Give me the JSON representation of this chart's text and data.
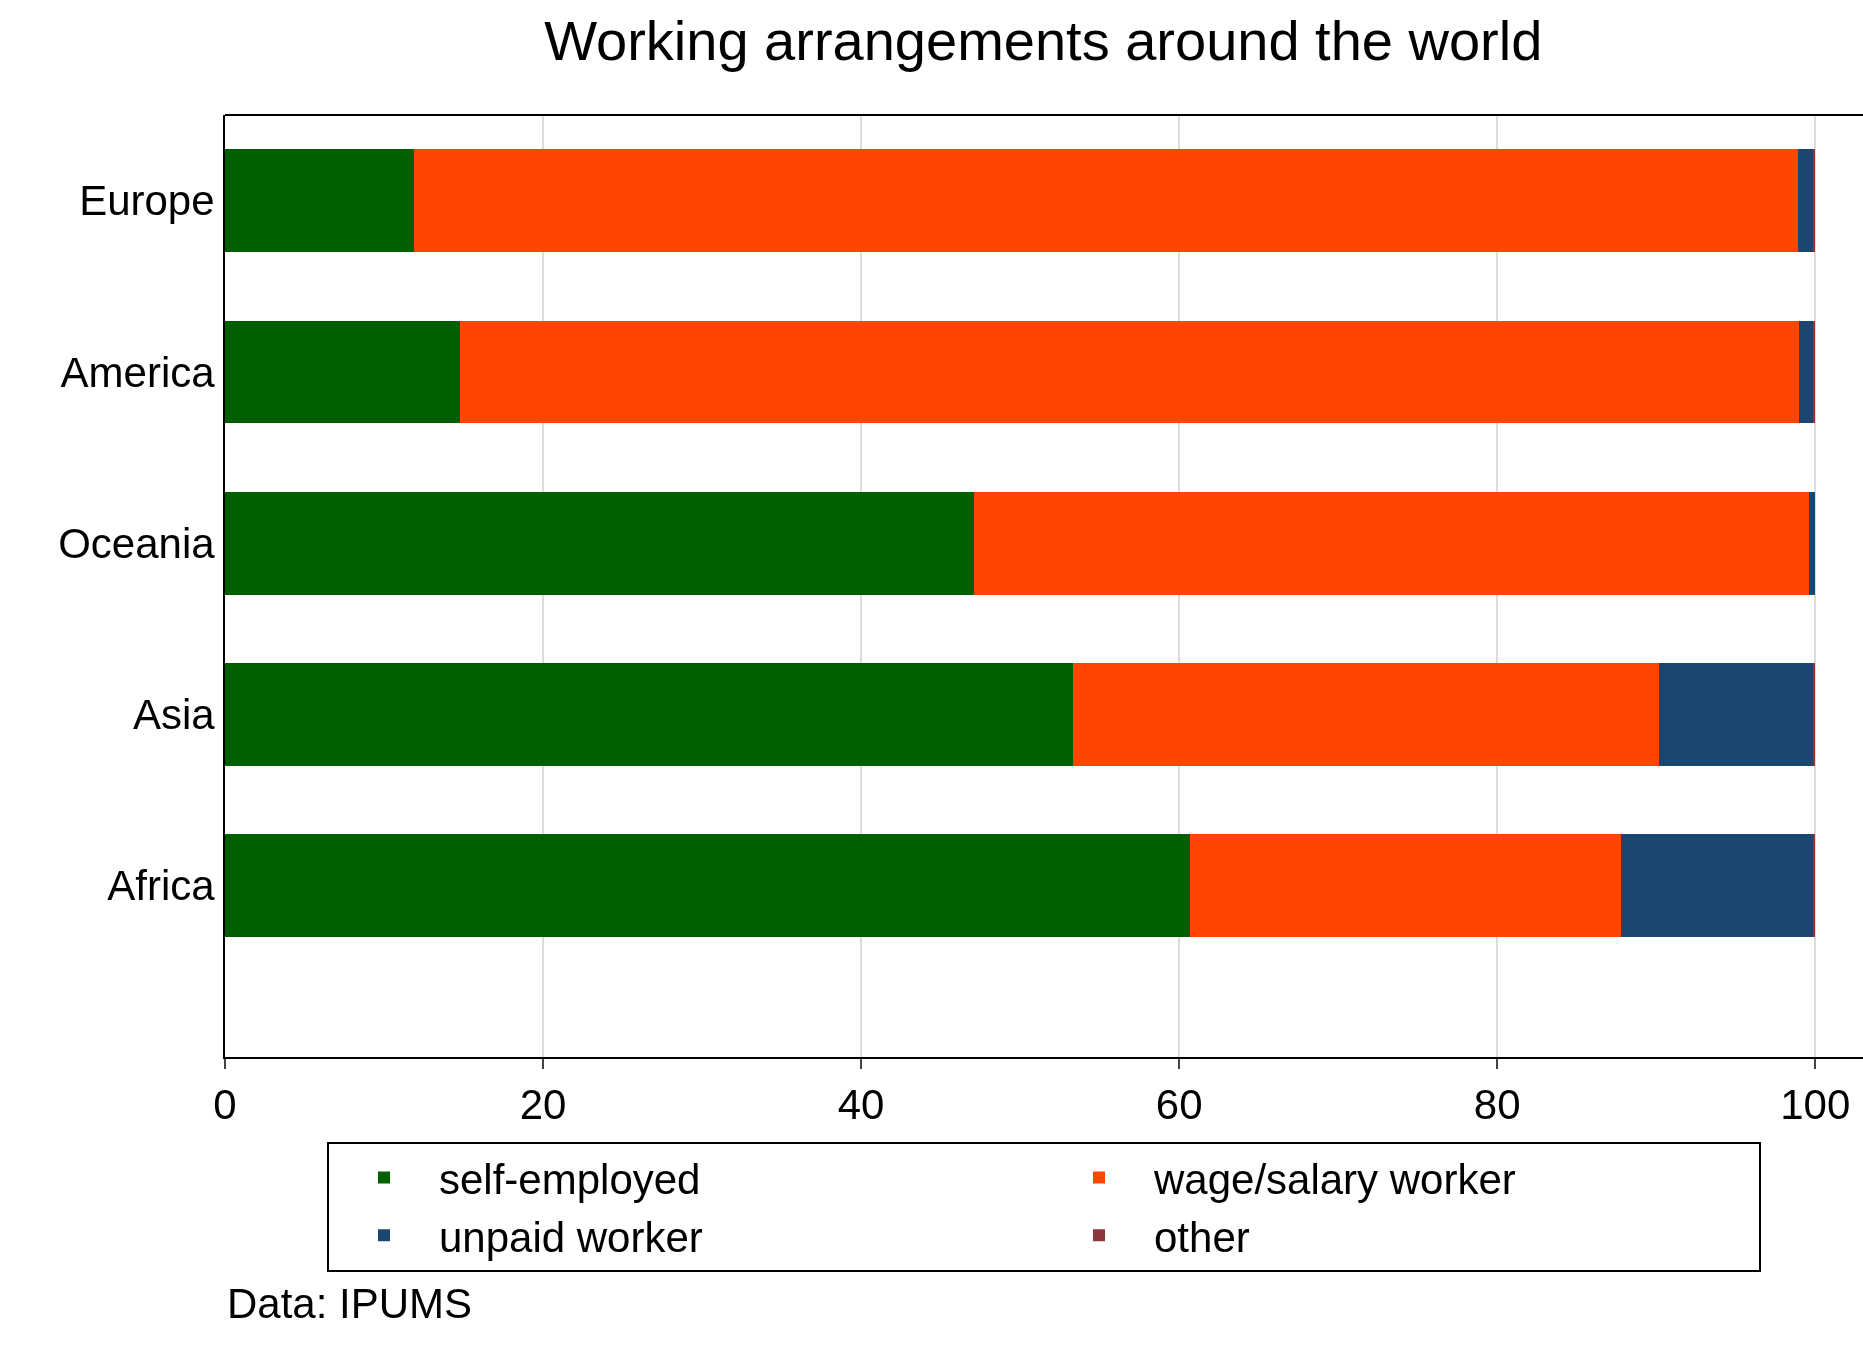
{
  "chart_data": {
    "type": "bar",
    "orientation": "horizontal",
    "stacked": true,
    "title": "Working arrangements around the world",
    "categories": [
      "Europe",
      "America",
      "Oceania",
      "Asia",
      "Africa"
    ],
    "series": [
      {
        "name": "self-employed",
        "color": "#006000",
        "values": [
          11.9,
          14.8,
          47.1,
          53.3,
          60.7
        ]
      },
      {
        "name": "wage/salary worker",
        "color": "#ff4500",
        "values": [
          87.0,
          84.2,
          52.5,
          36.9,
          27.1
        ]
      },
      {
        "name": "unpaid worker",
        "color": "#1a476f",
        "values": [
          1.0,
          0.9,
          0.4,
          9.7,
          12.1
        ]
      },
      {
        "name": "other",
        "color": "#90353b",
        "values": [
          0.1,
          0.1,
          0.0,
          0.1,
          0.1
        ]
      }
    ],
    "xlim": [
      0,
      103
    ],
    "xticks": [
      0,
      20,
      40,
      60,
      80,
      100
    ],
    "grid": "x",
    "legend": "bottom",
    "annotations": [
      "Data: IPUMS"
    ]
  }
}
